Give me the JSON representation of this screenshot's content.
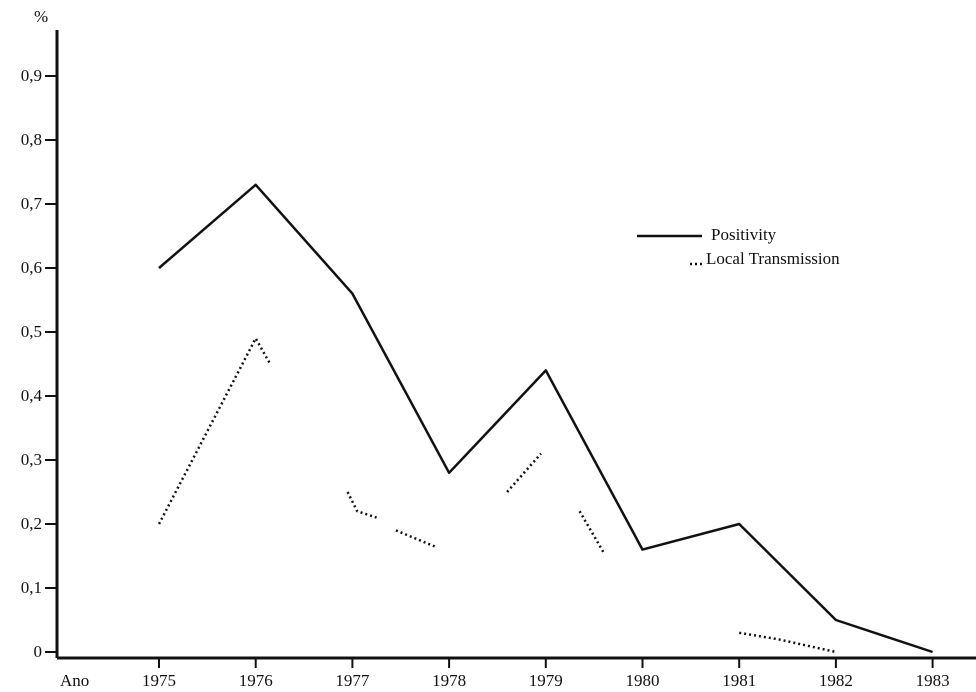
{
  "chart_data": {
    "type": "line",
    "title": "",
    "xlabel": "Ano",
    "ylabel": "%",
    "categories": [
      "1975",
      "1976",
      "1977",
      "1978",
      "1979",
      "1980",
      "1981",
      "1982",
      "1983"
    ],
    "y_ticks": [
      "0",
      "0,1",
      "0,2",
      "0,3",
      "0,4",
      "0,5",
      "0,6",
      "0,7",
      "0,8",
      "0,9"
    ],
    "ylim": [
      0,
      1.0
    ],
    "grid": false,
    "legend_position": "top-right",
    "series": [
      {
        "name": "Positivity",
        "style": "solid",
        "color": "#111111",
        "points": [
          {
            "x": "1975",
            "y": 0.6
          },
          {
            "x": "1976",
            "y": 0.73
          },
          {
            "x": "1977",
            "y": 0.56
          },
          {
            "x": "1978",
            "y": 0.28
          },
          {
            "x": "1979",
            "y": 0.44
          },
          {
            "x": "1980",
            "y": 0.16
          },
          {
            "x": "1981",
            "y": 0.2
          },
          {
            "x": "1982",
            "y": 0.05
          },
          {
            "x": "1983",
            "y": 0.0
          }
        ]
      },
      {
        "name": "Local Transmission",
        "style": "dotted",
        "color": "#111111",
        "segments": [
          [
            {
              "x": "1975",
              "y": 0.2
            },
            {
              "x": "1976",
              "y": 0.49
            },
            {
              "x": "1976.15",
              "y": 0.45
            }
          ],
          [
            {
              "x": "1976.95",
              "y": 0.25
            },
            {
              "x": "1977.05",
              "y": 0.22
            },
            {
              "x": "1977.25",
              "y": 0.21
            }
          ],
          [
            {
              "x": "1977.45",
              "y": 0.19
            },
            {
              "x": "1977.85",
              "y": 0.165
            }
          ],
          [
            {
              "x": "1978.6",
              "y": 0.25
            },
            {
              "x": "1978.95",
              "y": 0.31
            }
          ],
          [
            {
              "x": "1979.35",
              "y": 0.22
            },
            {
              "x": "1979.6",
              "y": 0.155
            }
          ],
          [
            {
              "x": "1981",
              "y": 0.03
            },
            {
              "x": "1981.4",
              "y": 0.02
            },
            {
              "x": "1982",
              "y": 0.0
            }
          ]
        ]
      }
    ]
  }
}
